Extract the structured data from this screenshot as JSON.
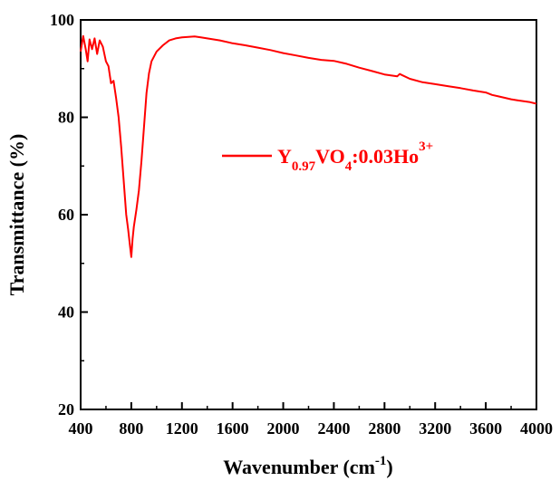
{
  "chart_data": {
    "type": "line",
    "xlabel": "Wavenumber (cm",
    "xlabel_sup": "-1",
    "xlabel_end": ")",
    "ylabel": "Transmittance (%)",
    "xlim": [
      400,
      4000
    ],
    "ylim": [
      20,
      100
    ],
    "xticks": [
      400,
      800,
      1200,
      1600,
      2000,
      2400,
      2800,
      3200,
      3600,
      4000
    ],
    "yticks": [
      20,
      40,
      60,
      80,
      100
    ],
    "grid": false,
    "legend_position": "center-right",
    "series": [
      {
        "legend": {
          "base": "Y",
          "sub1": "0.97",
          "mid": "VO",
          "sub2": "4",
          "rest": ":0.03Ho",
          "sup": "3+"
        },
        "color": "#ff0000",
        "x": [
          400,
          420,
          440,
          455,
          470,
          490,
          510,
          530,
          550,
          575,
          600,
          620,
          640,
          660,
          680,
          700,
          720,
          740,
          760,
          775,
          790,
          800,
          810,
          820,
          840,
          860,
          880,
          900,
          920,
          940,
          960,
          980,
          1000,
          1050,
          1100,
          1150,
          1200,
          1250,
          1300,
          1350,
          1400,
          1500,
          1600,
          1700,
          1800,
          1900,
          2000,
          2100,
          2200,
          2300,
          2400,
          2500,
          2600,
          2700,
          2800,
          2900,
          2920,
          3000,
          3100,
          3200,
          3300,
          3400,
          3500,
          3600,
          3650,
          3700,
          3750,
          3800,
          3850,
          3900,
          3950,
          4000
        ],
        "y": [
          93.5,
          96.7,
          94.0,
          91.5,
          96.0,
          94.0,
          96.2,
          93.0,
          95.8,
          94.5,
          91.5,
          90.5,
          87.0,
          87.5,
          84.0,
          80.0,
          74.0,
          67.0,
          60.0,
          57.0,
          53.5,
          51.3,
          55.0,
          57.5,
          61.0,
          65.0,
          71.0,
          78.0,
          85.0,
          89.0,
          91.5,
          92.5,
          93.5,
          94.8,
          95.8,
          96.2,
          96.4,
          96.5,
          96.6,
          96.4,
          96.2,
          95.8,
          95.2,
          94.8,
          94.3,
          93.8,
          93.2,
          92.7,
          92.2,
          91.8,
          91.6,
          91.0,
          90.2,
          89.5,
          88.8,
          88.4,
          88.9,
          87.9,
          87.2,
          86.8,
          86.4,
          86.0,
          85.5,
          85.1,
          84.6,
          84.3,
          84.0,
          83.7,
          83.5,
          83.3,
          83.1,
          82.8
        ]
      }
    ]
  }
}
